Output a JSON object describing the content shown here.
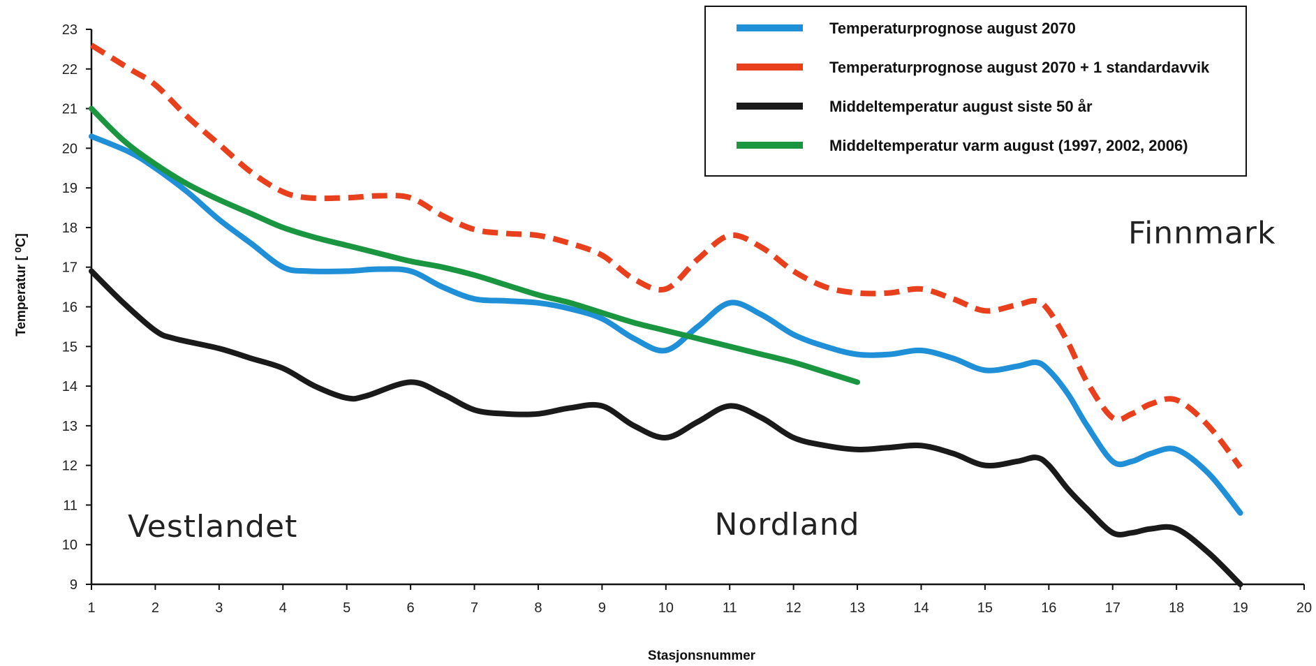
{
  "chart_data": {
    "type": "line",
    "xlabel": "Stasjonsnummer",
    "ylabel": "Temperatur [ ⁰C]",
    "xlim": [
      1,
      20
    ],
    "ylim": [
      9,
      23
    ],
    "x_ticks": [
      1,
      2,
      3,
      4,
      5,
      6,
      7,
      8,
      9,
      10,
      11,
      12,
      13,
      14,
      15,
      16,
      17,
      18,
      19,
      20
    ],
    "y_ticks": [
      9,
      10,
      11,
      12,
      13,
      14,
      15,
      16,
      17,
      18,
      19,
      20,
      21,
      22,
      23
    ],
    "grid": false,
    "legend_position": "top-right",
    "series": [
      {
        "name": "Temperaturprognose august 2070",
        "color": "#1f8fd8",
        "dash": "solid",
        "x": [
          1,
          1.6,
          2,
          2.5,
          3,
          3.5,
          4,
          4.4,
          5,
          5.5,
          6,
          6.5,
          7,
          7.5,
          8,
          8.5,
          9,
          9.5,
          10,
          10.5,
          11,
          11.5,
          12,
          12.5,
          13,
          13.5,
          14,
          14.5,
          15,
          15.5,
          15.8,
          16,
          16.3,
          16.6,
          17,
          17.3,
          17.6,
          18,
          18.5,
          19
        ],
        "y": [
          20.3,
          19.9,
          19.5,
          18.9,
          18.2,
          17.6,
          17.0,
          16.9,
          16.9,
          16.95,
          16.9,
          16.5,
          16.2,
          16.15,
          16.1,
          15.95,
          15.7,
          15.2,
          14.9,
          15.5,
          16.1,
          15.8,
          15.3,
          15.0,
          14.8,
          14.8,
          14.9,
          14.7,
          14.4,
          14.5,
          14.6,
          14.4,
          13.8,
          13.0,
          12.1,
          12.1,
          12.3,
          12.4,
          11.8,
          10.8
        ]
      },
      {
        "name": "Temperaturprognose august 2070 + 1 standardavvik",
        "color": "#e8401c",
        "dash": "dashed",
        "x": [
          1,
          1.6,
          2,
          2.5,
          3,
          3.5,
          4,
          4.4,
          5,
          5.5,
          6,
          6.5,
          7,
          7.5,
          8,
          8.5,
          9,
          9.5,
          10,
          10.5,
          11,
          11.5,
          12,
          12.5,
          13,
          13.5,
          14,
          14.5,
          15,
          15.5,
          15.8,
          16,
          16.3,
          16.6,
          17,
          17.3,
          17.6,
          18,
          18.5,
          19
        ],
        "y": [
          22.6,
          22.0,
          21.6,
          20.8,
          20.1,
          19.4,
          18.9,
          18.75,
          18.75,
          18.8,
          18.75,
          18.3,
          17.95,
          17.85,
          17.8,
          17.6,
          17.3,
          16.7,
          16.45,
          17.2,
          17.8,
          17.5,
          16.9,
          16.5,
          16.35,
          16.35,
          16.45,
          16.2,
          15.9,
          16.05,
          16.15,
          15.9,
          15.1,
          14.1,
          13.2,
          13.3,
          13.55,
          13.65,
          13.0,
          11.95
        ]
      },
      {
        "name": "Middeltemperatur august siste 50 år",
        "color": "#1a1a1a",
        "dash": "solid",
        "x": [
          1,
          1.5,
          2,
          2.3,
          3,
          3.5,
          4,
          4.5,
          5,
          5.3,
          6,
          6.5,
          7,
          7.5,
          8,
          8.5,
          9,
          9.5,
          10,
          10.5,
          11,
          11.5,
          12,
          12.5,
          13,
          13.5,
          14,
          14.5,
          15,
          15.5,
          15.8,
          16,
          16.3,
          16.6,
          17,
          17.3,
          17.6,
          18,
          18.5,
          19
        ],
        "y": [
          16.9,
          16.1,
          15.4,
          15.2,
          14.95,
          14.7,
          14.45,
          14.0,
          13.7,
          13.75,
          14.1,
          13.8,
          13.4,
          13.3,
          13.3,
          13.45,
          13.5,
          13.0,
          12.7,
          13.1,
          13.5,
          13.2,
          12.7,
          12.5,
          12.4,
          12.45,
          12.5,
          12.3,
          12.0,
          12.1,
          12.2,
          12.0,
          11.4,
          10.9,
          10.3,
          10.3,
          10.4,
          10.4,
          9.8,
          9.0
        ]
      },
      {
        "name": "Middeltemperatur varm august (1997, 2002, 2006)",
        "color": "#1a9641",
        "dash": "solid",
        "x": [
          1,
          1.5,
          2,
          2.5,
          3,
          3.5,
          4,
          4.5,
          5,
          5.5,
          6,
          6.5,
          7,
          7.5,
          8,
          8.5,
          9,
          9.5,
          10,
          10.5,
          11,
          11.5,
          12,
          12.5,
          13
        ],
        "y": [
          21.0,
          20.2,
          19.6,
          19.1,
          18.7,
          18.35,
          18.0,
          17.75,
          17.55,
          17.35,
          17.15,
          17.0,
          16.8,
          16.55,
          16.3,
          16.1,
          15.85,
          15.6,
          15.4,
          15.2,
          15.0,
          14.8,
          14.6,
          14.35,
          14.1
        ]
      }
    ],
    "annotations": [
      {
        "text": "Vestlandet",
        "x": 2.9,
        "y": 10.2
      },
      {
        "text": "Nordland",
        "x": 11.9,
        "y": 10.25
      },
      {
        "text": "Finnmark",
        "x": 18.4,
        "y": 17.6
      }
    ]
  }
}
